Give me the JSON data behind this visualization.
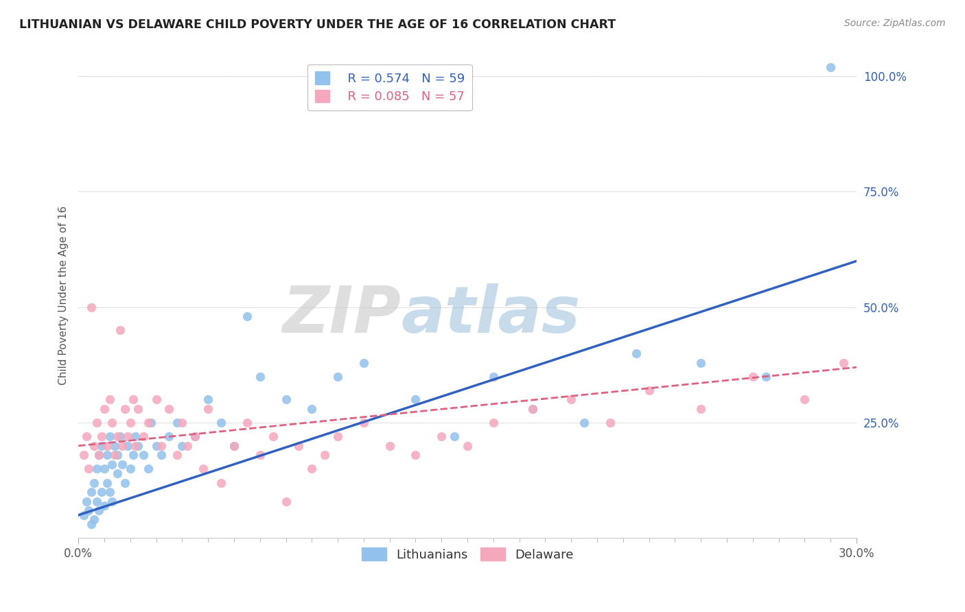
{
  "title": "LITHUANIAN VS DELAWARE CHILD POVERTY UNDER THE AGE OF 16 CORRELATION CHART",
  "source_text": "Source: ZipAtlas.com",
  "ylabel": "Child Poverty Under the Age of 16",
  "xlim": [
    0.0,
    0.3
  ],
  "ylim": [
    0.0,
    1.05
  ],
  "ytick_values": [
    0.0,
    0.25,
    0.5,
    0.75,
    1.0
  ],
  "legend_R_blue": "R = 0.574",
  "legend_N_blue": "N = 59",
  "legend_R_pink": "R = 0.085",
  "legend_N_pink": "N = 57",
  "blue_color": "#92C1ED",
  "pink_color": "#F5A8BC",
  "trend_blue_color": "#3060C0",
  "trend_pink_color": "#E06080",
  "watermark_zip": "ZIP",
  "watermark_atlas": "atlas",
  "background_color": "#FFFFFF",
  "grid_color": "#E0E0E0",
  "lithuanians_scatter_x": [
    0.002,
    0.003,
    0.004,
    0.005,
    0.005,
    0.006,
    0.006,
    0.007,
    0.007,
    0.008,
    0.008,
    0.009,
    0.009,
    0.01,
    0.01,
    0.011,
    0.011,
    0.012,
    0.012,
    0.013,
    0.013,
    0.014,
    0.015,
    0.015,
    0.016,
    0.017,
    0.018,
    0.019,
    0.02,
    0.021,
    0.022,
    0.023,
    0.025,
    0.027,
    0.028,
    0.03,
    0.032,
    0.035,
    0.038,
    0.04,
    0.045,
    0.05,
    0.055,
    0.06,
    0.065,
    0.07,
    0.08,
    0.09,
    0.1,
    0.11,
    0.13,
    0.145,
    0.16,
    0.175,
    0.195,
    0.215,
    0.24,
    0.265,
    0.29
  ],
  "lithuanians_scatter_y": [
    0.05,
    0.08,
    0.06,
    0.03,
    0.1,
    0.12,
    0.04,
    0.08,
    0.15,
    0.06,
    0.18,
    0.1,
    0.2,
    0.07,
    0.15,
    0.12,
    0.18,
    0.1,
    0.22,
    0.08,
    0.16,
    0.2,
    0.14,
    0.18,
    0.22,
    0.16,
    0.12,
    0.2,
    0.15,
    0.18,
    0.22,
    0.2,
    0.18,
    0.15,
    0.25,
    0.2,
    0.18,
    0.22,
    0.25,
    0.2,
    0.22,
    0.3,
    0.25,
    0.2,
    0.48,
    0.35,
    0.3,
    0.28,
    0.35,
    0.38,
    0.3,
    0.22,
    0.35,
    0.28,
    0.25,
    0.4,
    0.38,
    0.35,
    1.02
  ],
  "delaware_scatter_x": [
    0.002,
    0.003,
    0.004,
    0.005,
    0.006,
    0.007,
    0.008,
    0.009,
    0.01,
    0.011,
    0.012,
    0.013,
    0.014,
    0.015,
    0.016,
    0.017,
    0.018,
    0.019,
    0.02,
    0.021,
    0.022,
    0.023,
    0.025,
    0.027,
    0.03,
    0.032,
    0.035,
    0.038,
    0.04,
    0.042,
    0.045,
    0.048,
    0.05,
    0.055,
    0.06,
    0.065,
    0.07,
    0.075,
    0.08,
    0.085,
    0.09,
    0.095,
    0.1,
    0.11,
    0.12,
    0.13,
    0.14,
    0.15,
    0.16,
    0.175,
    0.19,
    0.205,
    0.22,
    0.24,
    0.26,
    0.28,
    0.295
  ],
  "delaware_scatter_y": [
    0.18,
    0.22,
    0.15,
    0.5,
    0.2,
    0.25,
    0.18,
    0.22,
    0.28,
    0.2,
    0.3,
    0.25,
    0.18,
    0.22,
    0.45,
    0.2,
    0.28,
    0.22,
    0.25,
    0.3,
    0.2,
    0.28,
    0.22,
    0.25,
    0.3,
    0.2,
    0.28,
    0.18,
    0.25,
    0.2,
    0.22,
    0.15,
    0.28,
    0.12,
    0.2,
    0.25,
    0.18,
    0.22,
    0.08,
    0.2,
    0.15,
    0.18,
    0.22,
    0.25,
    0.2,
    0.18,
    0.22,
    0.2,
    0.25,
    0.28,
    0.3,
    0.25,
    0.32,
    0.28,
    0.35,
    0.3,
    0.38
  ]
}
